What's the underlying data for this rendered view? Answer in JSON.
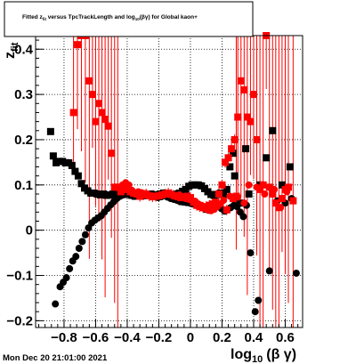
{
  "chart_data": {
    "type": "scatter",
    "title": "Fitted  z_fit  versus TpcTrackLength and log_10(βγ) for Global kaon+",
    "xlabel": "log_10(βγ)",
    "ylabel": "z_fit",
    "xlim": [
      -0.98,
      0.71
    ],
    "ylim": [
      -0.215,
      0.43
    ],
    "grid": true,
    "x_ticks": [
      "−0.8",
      "−0.6",
      "−0.4",
      "−0.2",
      "0",
      "0.2",
      "0.4",
      "0.6"
    ],
    "x_tick_values": [
      -0.8,
      -0.6,
      -0.4,
      -0.2,
      0.0,
      0.2,
      0.4,
      0.6
    ],
    "y_ticks": [
      "−0.2",
      "−0.1",
      "0",
      "0.1",
      "0.2",
      "0.3",
      "0.4"
    ],
    "y_tick_values": [
      -0.2,
      -0.1,
      0.0,
      0.1,
      0.2,
      0.3,
      0.4
    ],
    "series": [
      {
        "color": "#000000",
        "marker": "square",
        "points": [
          [
            -0.885,
            0.218
          ],
          [
            -0.868,
            0.164
          ],
          [
            -0.85,
            0.149
          ],
          [
            -0.83,
            0.152
          ],
          [
            -0.81,
            0.152
          ],
          [
            -0.79,
            0.149
          ],
          [
            -0.77,
            0.149
          ],
          [
            -0.75,
            0.143
          ],
          [
            -0.73,
            0.13
          ],
          [
            -0.71,
            0.12
          ],
          [
            -0.69,
            0.103
          ],
          [
            -0.67,
            0.093
          ],
          [
            -0.65,
            0.087
          ],
          [
            -0.63,
            0.082
          ],
          [
            -0.61,
            0.082
          ],
          [
            -0.59,
            0.08
          ],
          [
            -0.57,
            0.078
          ],
          [
            -0.55,
            0.08
          ],
          [
            -0.53,
            0.077
          ],
          [
            -0.51,
            0.078
          ],
          [
            -0.49,
            0.08
          ],
          [
            -0.47,
            0.08
          ],
          [
            -0.45,
            0.079
          ],
          [
            -0.43,
            0.08
          ],
          [
            -0.41,
            0.08
          ],
          [
            -0.39,
            0.079
          ],
          [
            -0.37,
            0.077
          ],
          [
            -0.35,
            0.075
          ],
          [
            -0.33,
            0.077
          ],
          [
            -0.31,
            0.078
          ],
          [
            -0.29,
            0.08
          ],
          [
            -0.27,
            0.078
          ],
          [
            -0.25,
            0.08
          ],
          [
            -0.23,
            0.077
          ],
          [
            -0.21,
            0.078
          ],
          [
            -0.19,
            0.08
          ],
          [
            -0.17,
            0.082
          ],
          [
            -0.15,
            0.08
          ],
          [
            -0.13,
            0.078
          ],
          [
            -0.11,
            0.076
          ],
          [
            -0.09,
            0.08
          ],
          [
            -0.07,
            0.082
          ],
          [
            -0.05,
            0.086
          ],
          [
            -0.03,
            0.09
          ],
          [
            -0.01,
            0.097
          ],
          [
            0.01,
            0.1
          ],
          [
            0.03,
            0.1
          ],
          [
            0.05,
            0.1
          ],
          [
            0.07,
            0.098
          ],
          [
            0.09,
            0.092
          ],
          [
            0.11,
            0.085
          ],
          [
            0.13,
            0.079
          ],
          [
            0.15,
            0.077
          ],
          [
            0.17,
            0.079
          ],
          [
            0.19,
            0.082
          ],
          [
            0.21,
            0.079
          ],
          [
            0.23,
            0.09
          ],
          [
            0.25,
            0.14
          ],
          [
            0.27,
            0.17
          ],
          [
            0.28,
            0.12
          ],
          [
            0.31,
            0.06
          ],
          [
            0.35,
            0.18
          ],
          [
            0.37,
            0.08
          ],
          [
            0.44,
            0.1
          ],
          [
            0.48,
            0.16
          ],
          [
            0.52,
            0.22
          ],
          [
            0.58,
            0.1
          ],
          [
            0.63,
            0.14
          ]
        ]
      },
      {
        "color": "#000000",
        "marker": "circle",
        "points": [
          [
            -0.855,
            -0.163
          ],
          [
            -0.825,
            -0.125
          ],
          [
            -0.805,
            -0.115
          ],
          [
            -0.785,
            -0.105
          ],
          [
            -0.765,
            -0.085
          ],
          [
            -0.745,
            -0.068
          ],
          [
            -0.725,
            -0.058
          ],
          [
            -0.705,
            -0.04
          ],
          [
            -0.685,
            -0.025
          ],
          [
            -0.665,
            -0.01
          ],
          [
            -0.645,
            0.005
          ],
          [
            -0.625,
            0.016
          ],
          [
            -0.605,
            0.022
          ],
          [
            -0.585,
            0.027
          ],
          [
            -0.565,
            0.032
          ],
          [
            -0.545,
            0.04
          ],
          [
            -0.525,
            0.048
          ],
          [
            -0.505,
            0.056
          ],
          [
            -0.485,
            0.063
          ],
          [
            -0.465,
            0.07
          ],
          [
            -0.445,
            0.075
          ],
          [
            -0.425,
            0.078
          ],
          [
            -0.405,
            0.08
          ],
          [
            -0.385,
            0.082
          ],
          [
            -0.365,
            0.08
          ],
          [
            -0.345,
            0.078
          ],
          [
            -0.325,
            0.076
          ],
          [
            -0.305,
            0.075
          ],
          [
            -0.285,
            0.076
          ],
          [
            -0.265,
            0.078
          ],
          [
            -0.245,
            0.076
          ],
          [
            -0.225,
            0.074
          ],
          [
            -0.205,
            0.072
          ],
          [
            -0.185,
            0.074
          ],
          [
            -0.165,
            0.076
          ],
          [
            -0.145,
            0.073
          ],
          [
            -0.125,
            0.07
          ],
          [
            -0.105,
            0.068
          ],
          [
            -0.085,
            0.066
          ],
          [
            -0.065,
            0.063
          ],
          [
            -0.045,
            0.062
          ],
          [
            -0.025,
            0.061
          ],
          [
            -0.005,
            0.06
          ],
          [
            0.015,
            0.058
          ],
          [
            0.035,
            0.055
          ],
          [
            0.055,
            0.052
          ],
          [
            0.075,
            0.05
          ],
          [
            0.095,
            0.046
          ],
          [
            0.115,
            0.044
          ],
          [
            0.135,
            0.045
          ],
          [
            0.155,
            0.05
          ],
          [
            0.175,
            0.055
          ],
          [
            0.195,
            0.048
          ],
          [
            0.215,
            0.042
          ],
          [
            0.235,
            0.045
          ],
          [
            0.255,
            0.05
          ],
          [
            0.275,
            0.055
          ],
          [
            0.295,
            0.052
          ],
          [
            0.315,
            0.04
          ],
          [
            0.335,
            0.03
          ],
          [
            0.355,
            0.055
          ],
          [
            0.38,
            -0.05
          ],
          [
            0.41,
            -0.18
          ],
          [
            0.43,
            -0.155
          ],
          [
            0.5,
            -0.09
          ],
          [
            0.55,
            0.065
          ],
          [
            0.6,
            0.06
          ],
          [
            0.64,
            0.07
          ],
          [
            0.67,
            -0.095
          ]
        ]
      },
      {
        "color": "#ff0000",
        "marker": "square",
        "points": [
          [
            -0.74,
            0.26
          ],
          [
            -0.715,
            0.41
          ],
          [
            -0.69,
            0.43
          ],
          [
            -0.665,
            0.43
          ],
          [
            -0.64,
            0.33
          ],
          [
            -0.62,
            0.3
          ],
          [
            -0.6,
            0.24
          ],
          [
            -0.58,
            0.28
          ],
          [
            -0.56,
            0.26
          ],
          [
            -0.54,
            0.245
          ],
          [
            -0.52,
            0.23
          ],
          [
            -0.5,
            0.17
          ],
          [
            -0.48,
            0.095
          ],
          [
            -0.46,
            0.095
          ],
          [
            -0.44,
            0.085
          ],
          [
            -0.42,
            0.093
          ],
          [
            -0.4,
            0.09
          ],
          [
            -0.38,
            0.085
          ],
          [
            -0.36,
            0.082
          ],
          [
            -0.34,
            0.08
          ],
          [
            -0.32,
            0.075
          ],
          [
            -0.3,
            0.078
          ],
          [
            -0.28,
            0.08
          ],
          [
            -0.26,
            0.076
          ],
          [
            -0.24,
            0.074
          ],
          [
            -0.22,
            0.075
          ],
          [
            -0.2,
            0.076
          ],
          [
            -0.18,
            0.078
          ],
          [
            -0.16,
            0.08
          ],
          [
            -0.14,
            0.082
          ],
          [
            -0.12,
            0.079
          ],
          [
            -0.1,
            0.076
          ],
          [
            -0.08,
            0.074
          ],
          [
            -0.06,
            0.072
          ],
          [
            -0.04,
            0.073
          ],
          [
            -0.02,
            0.075
          ],
          [
            0.0,
            0.072
          ],
          [
            0.02,
            0.062
          ],
          [
            0.04,
            0.055
          ],
          [
            0.06,
            0.052
          ],
          [
            0.08,
            0.05
          ],
          [
            0.1,
            0.052
          ],
          [
            0.12,
            0.055
          ],
          [
            0.14,
            0.058
          ],
          [
            0.16,
            0.062
          ],
          [
            0.18,
            0.08
          ],
          [
            0.2,
            0.1
          ],
          [
            0.22,
            0.15
          ],
          [
            0.24,
            0.16
          ],
          [
            0.26,
            0.18
          ],
          [
            0.28,
            0.2
          ],
          [
            0.3,
            0.25
          ],
          [
            0.32,
            0.33
          ],
          [
            0.34,
            0.31
          ],
          [
            0.36,
            0.25
          ],
          [
            0.38,
            0.24
          ],
          [
            0.4,
            0.3
          ],
          [
            0.42,
            0.2
          ],
          [
            0.44,
            0.09
          ],
          [
            0.46,
            0.1
          ],
          [
            0.48,
            0.43
          ],
          [
            0.5,
            0.095
          ],
          [
            0.52,
            0.08
          ],
          [
            0.54,
            0.06
          ],
          [
            0.56,
            0.05
          ],
          [
            0.58,
            0.07
          ],
          [
            0.6,
            0.09
          ],
          [
            0.62,
            0.095
          ],
          [
            0.65,
            0.065
          ],
          [
            0.27,
            0.07
          ],
          [
            0.29,
            0.075
          ],
          [
            0.23,
            0.045
          ]
        ]
      },
      {
        "color": "#ff0000",
        "marker": "circle",
        "points": [
          [
            -0.43,
            0.1
          ],
          [
            -0.41,
            0.105
          ],
          [
            -0.39,
            0.1
          ],
          [
            -0.37,
            0.088
          ],
          [
            -0.35,
            0.082
          ],
          [
            -0.33,
            0.085
          ],
          [
            -0.31,
            0.083
          ],
          [
            -0.29,
            0.081
          ],
          [
            -0.07,
            0.078
          ],
          [
            -0.05,
            0.074
          ],
          [
            -0.03,
            0.07
          ],
          [
            -0.01,
            0.068
          ],
          [
            0.01,
            0.066
          ],
          [
            0.03,
            0.064
          ],
          [
            0.05,
            0.058
          ],
          [
            0.07,
            0.055
          ],
          [
            0.09,
            0.048
          ],
          [
            0.11,
            0.045
          ],
          [
            0.13,
            0.043
          ],
          [
            0.15,
            0.046
          ],
          [
            0.17,
            0.052
          ],
          [
            0.19,
            0.058
          ],
          [
            0.21,
            0.066
          ],
          [
            0.25,
            0.075
          ],
          [
            0.3,
            0.073
          ],
          [
            0.34,
            0.06
          ],
          [
            0.37,
            0.1
          ],
          [
            0.42,
            0.095
          ],
          [
            0.47,
            0.08
          ],
          [
            0.53,
            0.09
          ],
          [
            0.57,
            0.05
          ],
          [
            0.61,
            0.085
          ]
        ]
      }
    ]
  },
  "title": "Fitted  z_fit  versus TpcTrackLength and log_10(βγ) for Global kaon+",
  "title_parts": {
    "pre": "Fitted  z",
    "sub_fit": "fit",
    "mid": "  versus TpcTrackLength and log",
    "sub_ten": "10",
    "post": "(βγ) for Global kaon+"
  },
  "axes": {
    "ylabel_main": "z",
    "ylabel_sub": "fit",
    "xlabel_main": "log",
    "xlabel_sub": "10",
    "xlabel_post": "(β γ)"
  },
  "footer": {
    "timestamp": "Mon Dec 20 21:01:00 2021"
  }
}
